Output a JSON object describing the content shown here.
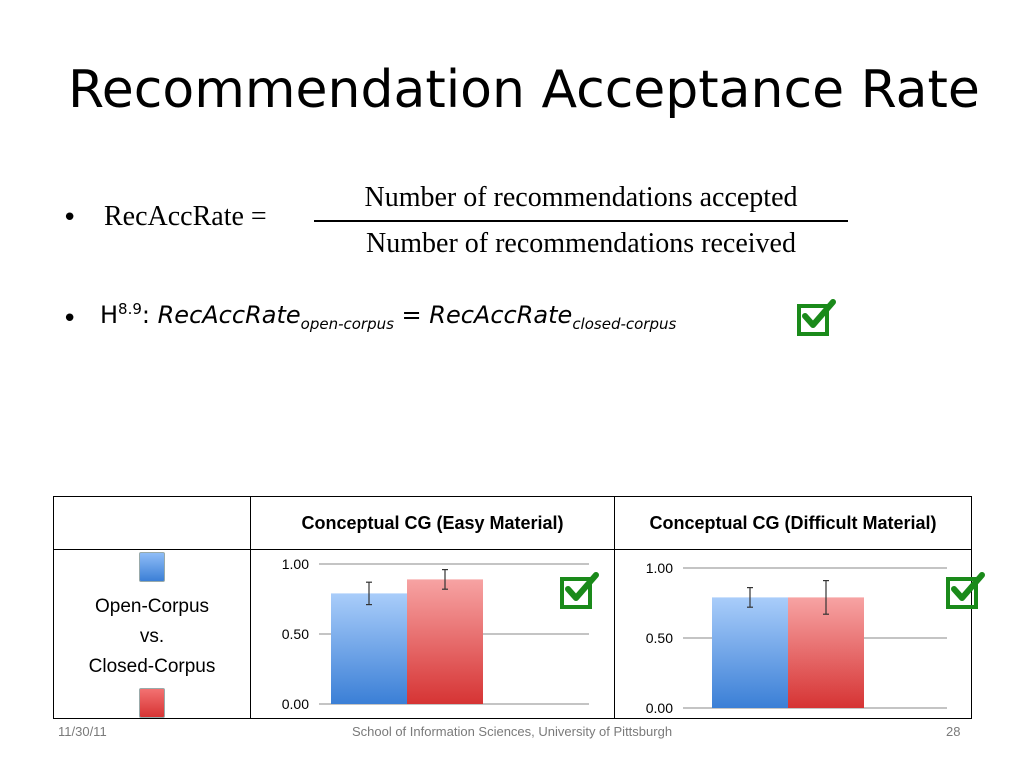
{
  "slide": {
    "title": "Recommendation Acceptance Rate",
    "bullet1": {
      "lhs": "RecAccRate =",
      "numerator": "Number of recommendations accepted",
      "denominator": "Number of recommendations received"
    },
    "bullet2": {
      "h": "H",
      "h_sup": "8.9",
      "colon": ": ",
      "term1": "RecAccRate",
      "term1_sub": "open-corpus",
      "equals": " = ",
      "term2": "RecAccRate",
      "term2_sub": "closed-corpus"
    },
    "bullet_char": "•"
  },
  "table": {
    "col1_header": "",
    "col2_header": "Conceptual CG (Easy Material)",
    "col3_header": "Conceptual CG (Difficult Material)",
    "legend_line1": "Open-Corpus",
    "legend_line2": "vs.",
    "legend_line3": "Closed-Corpus",
    "open_color": "#4a8fe0",
    "closed_color": "#e04444"
  },
  "chart_data": [
    {
      "type": "bar",
      "title": "",
      "xlabel": "",
      "ylabel": "",
      "ylim": [
        0,
        1
      ],
      "yticks": [
        "0.00",
        "0.50",
        "1.00"
      ],
      "grid": true,
      "legend": "none",
      "series": [
        {
          "values": [
            0.79
          ],
          "error": [
            0.08
          ],
          "color": "#4a8fe0"
        },
        {
          "values": [
            0.89
          ],
          "error": [
            0.07
          ],
          "color": "#e04444"
        }
      ]
    },
    {
      "type": "bar",
      "title": "",
      "xlabel": "",
      "ylabel": "",
      "ylim": [
        0,
        1
      ],
      "yticks": [
        "0.00",
        "0.50",
        "1.00"
      ],
      "grid": true,
      "legend": "none",
      "series": [
        {
          "values": [
            0.79
          ],
          "error": [
            0.07
          ],
          "color": "#4a8fe0"
        },
        {
          "values": [
            0.79
          ],
          "error": [
            0.12
          ],
          "color": "#e04444"
        }
      ]
    }
  ],
  "footer": {
    "date": "11/30/11",
    "center": "School of Information Sciences, University of Pittsburgh",
    "page": "28"
  }
}
